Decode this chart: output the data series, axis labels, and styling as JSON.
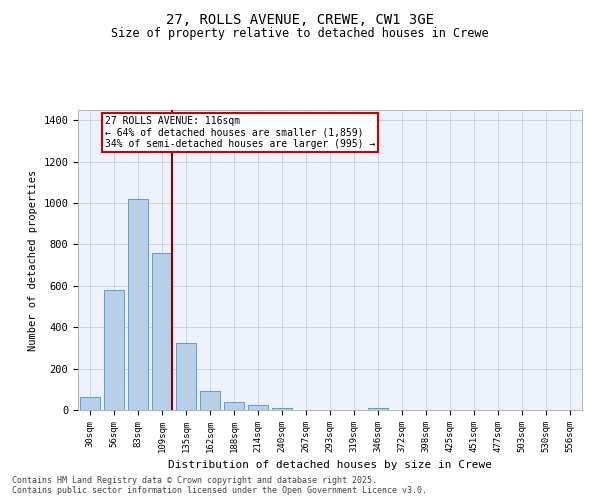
{
  "title_line1": "27, ROLLS AVENUE, CREWE, CW1 3GE",
  "title_line2": "Size of property relative to detached houses in Crewe",
  "xlabel": "Distribution of detached houses by size in Crewe",
  "ylabel": "Number of detached properties",
  "categories": [
    "30sqm",
    "56sqm",
    "83sqm",
    "109sqm",
    "135sqm",
    "162sqm",
    "188sqm",
    "214sqm",
    "240sqm",
    "267sqm",
    "293sqm",
    "319sqm",
    "346sqm",
    "372sqm",
    "398sqm",
    "425sqm",
    "451sqm",
    "477sqm",
    "503sqm",
    "530sqm",
    "556sqm"
  ],
  "values": [
    65,
    578,
    1020,
    760,
    325,
    90,
    38,
    22,
    12,
    0,
    0,
    0,
    12,
    0,
    0,
    0,
    0,
    0,
    0,
    0,
    0
  ],
  "bar_color": "#b8cfe8",
  "bar_edge_color": "#5b9bd5",
  "property_line_color": "#8b0000",
  "annotation_text": "27 ROLLS AVENUE: 116sqm\n← 64% of detached houses are smaller (1,859)\n34% of semi-detached houses are larger (995) →",
  "annotation_box_color": "#cc0000",
  "ylim": [
    0,
    1450
  ],
  "yticks": [
    0,
    200,
    400,
    600,
    800,
    1000,
    1200,
    1400
  ],
  "grid_color": "#c8d4e8",
  "background_color": "#edf1fa",
  "footer_line1": "Contains HM Land Registry data © Crown copyright and database right 2025.",
  "footer_line2": "Contains public sector information licensed under the Open Government Licence v3.0."
}
